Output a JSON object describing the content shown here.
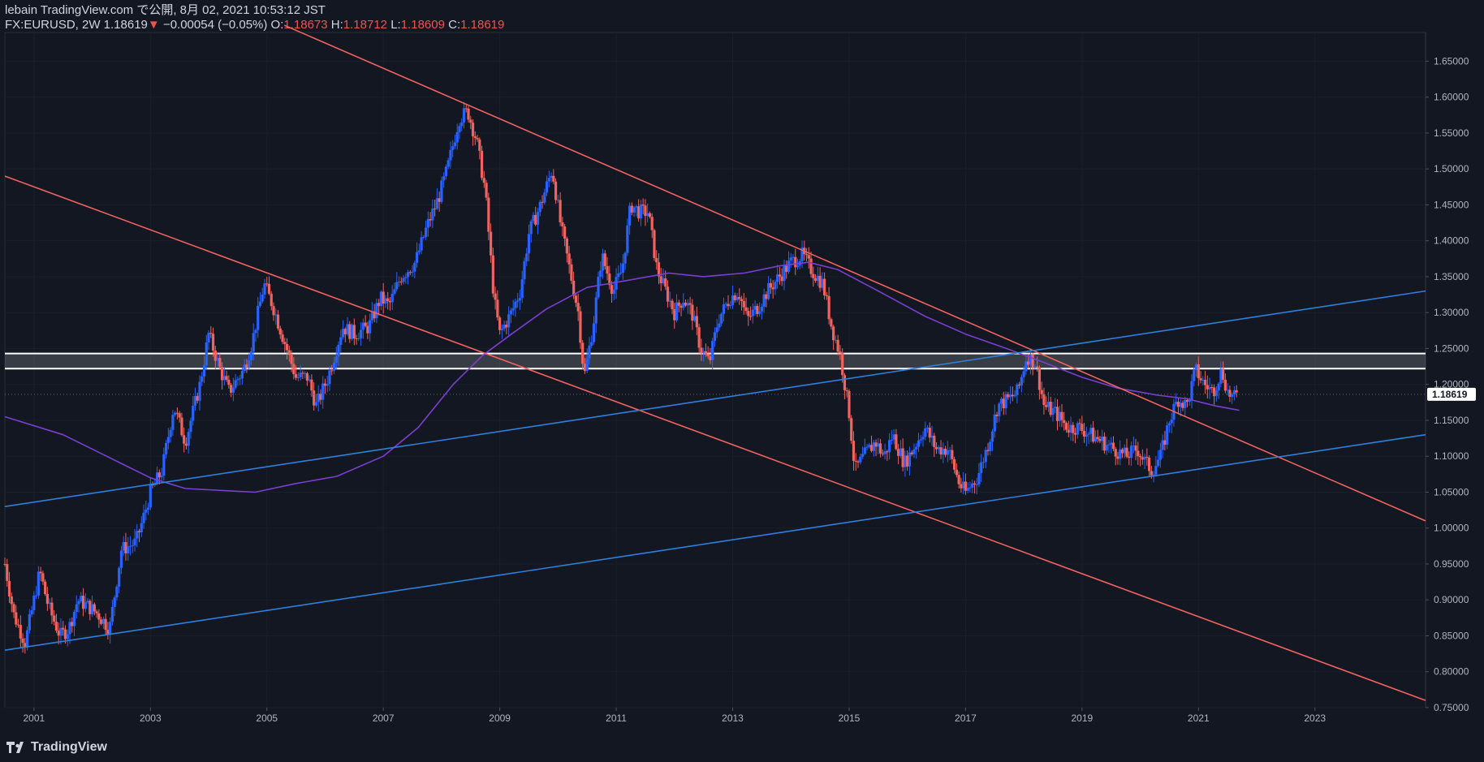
{
  "header": {
    "publish_line": "lebain TradingView.com で公開, 8月 02, 2021 10:53:12 JST",
    "symbol": "FX:EURUSD, 2W 1.18619",
    "change_arrow": "▼",
    "change": "−0.00054 (−0.05%)",
    "o_label": "O:",
    "o_value": "1.18673",
    "h_label": "H:",
    "h_value": "1.18712",
    "l_label": "L:",
    "l_value": "1.18609",
    "c_label": "C:",
    "c_value": "1.18619"
  },
  "footer": {
    "logo_text": "TradingView"
  },
  "colors": {
    "background": "#131722",
    "up": "#2962ff",
    "down": "#f0635f",
    "trend_red": "#f0635f",
    "trend_blue": "#2f7fdc",
    "ma": "#7b3fd0",
    "zone_line": "#ffffff",
    "price_tag_bg": "#ffffff",
    "price_tag_text": "#131722"
  },
  "chart_data": {
    "type": "candlestick",
    "symbol": "FX:EURUSD",
    "interval": "2W",
    "ylim": [
      0.75,
      1.69
    ],
    "xlim": [
      2000.5,
      2024.9
    ],
    "y_ticks": [
      "0.75000",
      "0.80000",
      "0.85000",
      "0.90000",
      "0.95000",
      "1.00000",
      "1.05000",
      "1.10000",
      "1.15000",
      "1.20000",
      "1.25000",
      "1.30000",
      "1.35000",
      "1.40000",
      "1.45000",
      "1.50000",
      "1.55000",
      "1.60000",
      "1.65000"
    ],
    "x_ticks": [
      "2001",
      "2003",
      "2005",
      "2007",
      "2009",
      "2011",
      "2013",
      "2015",
      "2017",
      "2019",
      "2021",
      "2023"
    ],
    "last_price_label": "1.18619",
    "close_anchors": [
      [
        2000.5,
        0.95
      ],
      [
        2000.65,
        0.88
      ],
      [
        2000.85,
        0.84
      ],
      [
        2001.0,
        0.9
      ],
      [
        2001.1,
        0.94
      ],
      [
        2001.25,
        0.89
      ],
      [
        2001.45,
        0.85
      ],
      [
        2001.6,
        0.86
      ],
      [
        2001.75,
        0.9
      ],
      [
        2001.95,
        0.89
      ],
      [
        2002.1,
        0.88
      ],
      [
        2002.3,
        0.86
      ],
      [
        2002.5,
        0.97
      ],
      [
        2002.75,
        0.98
      ],
      [
        2002.9,
        1.02
      ],
      [
        2003.0,
        1.05
      ],
      [
        2003.2,
        1.08
      ],
      [
        2003.4,
        1.17
      ],
      [
        2003.6,
        1.12
      ],
      [
        2003.85,
        1.2
      ],
      [
        2004.0,
        1.27
      ],
      [
        2004.2,
        1.22
      ],
      [
        2004.35,
        1.19
      ],
      [
        2004.6,
        1.22
      ],
      [
        2004.75,
        1.26
      ],
      [
        2004.95,
        1.34
      ],
      [
        2005.1,
        1.31
      ],
      [
        2005.3,
        1.26
      ],
      [
        2005.5,
        1.21
      ],
      [
        2005.7,
        1.21
      ],
      [
        2005.85,
        1.17
      ],
      [
        2006.05,
        1.21
      ],
      [
        2006.3,
        1.28
      ],
      [
        2006.5,
        1.27
      ],
      [
        2006.75,
        1.28
      ],
      [
        2006.95,
        1.32
      ],
      [
        2007.1,
        1.31
      ],
      [
        2007.3,
        1.35
      ],
      [
        2007.55,
        1.37
      ],
      [
        2007.75,
        1.42
      ],
      [
        2007.95,
        1.46
      ],
      [
        2008.1,
        1.5
      ],
      [
        2008.3,
        1.57
      ],
      [
        2008.45,
        1.58
      ],
      [
        2008.6,
        1.54
      ],
      [
        2008.75,
        1.47
      ],
      [
        2008.9,
        1.32
      ],
      [
        2009.0,
        1.27
      ],
      [
        2009.2,
        1.3
      ],
      [
        2009.35,
        1.33
      ],
      [
        2009.5,
        1.41
      ],
      [
        2009.7,
        1.45
      ],
      [
        2009.9,
        1.5
      ],
      [
        2010.05,
        1.42
      ],
      [
        2010.2,
        1.36
      ],
      [
        2010.35,
        1.3
      ],
      [
        2010.45,
        1.21
      ],
      [
        2010.6,
        1.28
      ],
      [
        2010.75,
        1.38
      ],
      [
        2010.95,
        1.33
      ],
      [
        2011.1,
        1.36
      ],
      [
        2011.25,
        1.45
      ],
      [
        2011.4,
        1.44
      ],
      [
        2011.55,
        1.44
      ],
      [
        2011.7,
        1.36
      ],
      [
        2011.85,
        1.33
      ],
      [
        2012.0,
        1.3
      ],
      [
        2012.15,
        1.32
      ],
      [
        2012.3,
        1.3
      ],
      [
        2012.45,
        1.25
      ],
      [
        2012.6,
        1.23
      ],
      [
        2012.75,
        1.29
      ],
      [
        2012.95,
        1.32
      ],
      [
        2013.1,
        1.33
      ],
      [
        2013.25,
        1.29
      ],
      [
        2013.45,
        1.31
      ],
      [
        2013.6,
        1.33
      ],
      [
        2013.8,
        1.35
      ],
      [
        2014.0,
        1.37
      ],
      [
        2014.2,
        1.38
      ],
      [
        2014.35,
        1.36
      ],
      [
        2014.55,
        1.34
      ],
      [
        2014.7,
        1.28
      ],
      [
        2014.85,
        1.24
      ],
      [
        2015.0,
        1.16
      ],
      [
        2015.1,
        1.08
      ],
      [
        2015.25,
        1.1
      ],
      [
        2015.45,
        1.12
      ],
      [
        2015.6,
        1.1
      ],
      [
        2015.75,
        1.13
      ],
      [
        2015.95,
        1.09
      ],
      [
        2016.1,
        1.11
      ],
      [
        2016.3,
        1.14
      ],
      [
        2016.5,
        1.11
      ],
      [
        2016.7,
        1.11
      ],
      [
        2016.9,
        1.06
      ],
      [
        2017.0,
        1.05
      ],
      [
        2017.2,
        1.07
      ],
      [
        2017.4,
        1.12
      ],
      [
        2017.55,
        1.17
      ],
      [
        2017.75,
        1.18
      ],
      [
        2017.9,
        1.19
      ],
      [
        2018.05,
        1.24
      ],
      [
        2018.2,
        1.23
      ],
      [
        2018.35,
        1.17
      ],
      [
        2018.55,
        1.16
      ],
      [
        2018.75,
        1.14
      ],
      [
        2018.95,
        1.14
      ],
      [
        2019.15,
        1.13
      ],
      [
        2019.35,
        1.12
      ],
      [
        2019.55,
        1.11
      ],
      [
        2019.75,
        1.1
      ],
      [
        2019.95,
        1.11
      ],
      [
        2020.1,
        1.09
      ],
      [
        2020.2,
        1.08
      ],
      [
        2020.35,
        1.1
      ],
      [
        2020.5,
        1.15
      ],
      [
        2020.65,
        1.18
      ],
      [
        2020.8,
        1.17
      ],
      [
        2020.95,
        1.22
      ],
      [
        2021.1,
        1.2
      ],
      [
        2021.25,
        1.19
      ],
      [
        2021.4,
        1.22
      ],
      [
        2021.5,
        1.19
      ],
      [
        2021.6,
        1.18
      ],
      [
        2021.68,
        1.186
      ]
    ],
    "ma_line": [
      [
        2000.5,
        1.155
      ],
      [
        2001.5,
        1.13
      ],
      [
        2002.5,
        1.09
      ],
      [
        2003.0,
        1.07
      ],
      [
        2003.6,
        1.055
      ],
      [
        2004.3,
        1.052
      ],
      [
        2004.8,
        1.05
      ],
      [
        2005.5,
        1.062
      ],
      [
        2006.2,
        1.072
      ],
      [
        2007.0,
        1.1
      ],
      [
        2007.6,
        1.14
      ],
      [
        2008.2,
        1.2
      ],
      [
        2008.7,
        1.24
      ],
      [
        2009.2,
        1.27
      ],
      [
        2009.8,
        1.305
      ],
      [
        2010.5,
        1.335
      ],
      [
        2011.2,
        1.345
      ],
      [
        2011.9,
        1.355
      ],
      [
        2012.5,
        1.35
      ],
      [
        2013.2,
        1.355
      ],
      [
        2013.8,
        1.365
      ],
      [
        2014.3,
        1.37
      ],
      [
        2014.8,
        1.36
      ],
      [
        2015.5,
        1.33
      ],
      [
        2016.3,
        1.295
      ],
      [
        2017.0,
        1.27
      ],
      [
        2017.7,
        1.25
      ],
      [
        2018.3,
        1.232
      ],
      [
        2019.0,
        1.21
      ],
      [
        2019.6,
        1.195
      ],
      [
        2020.3,
        1.185
      ],
      [
        2020.8,
        1.18
      ],
      [
        2021.3,
        1.17
      ],
      [
        2021.7,
        1.164
      ]
    ],
    "trendlines": [
      {
        "color": "red",
        "points": [
          [
            2000.5,
            1.49
          ],
          [
            2024.9,
            0.76
          ]
        ]
      },
      {
        "color": "red",
        "points": [
          [
            2005.3,
            1.7
          ],
          [
            2024.9,
            1.01
          ]
        ]
      },
      {
        "color": "blue",
        "points": [
          [
            2000.5,
            0.83
          ],
          [
            2024.9,
            1.13
          ]
        ]
      },
      {
        "color": "blue",
        "points": [
          [
            2000.5,
            1.03
          ],
          [
            2024.9,
            1.33
          ]
        ]
      }
    ],
    "zone": [
      1.222,
      1.243
    ]
  }
}
